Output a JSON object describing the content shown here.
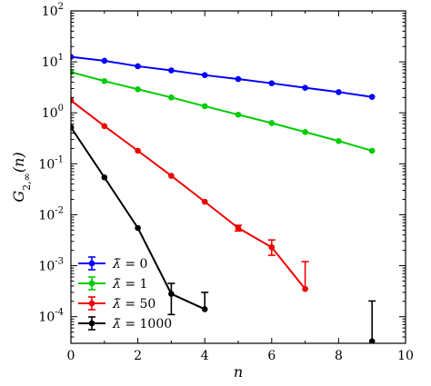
{
  "chart_data": {
    "type": "line",
    "xlabel": "n",
    "ylabel": "G_{2,∞}(n)",
    "ylabel_main": "G",
    "ylabel_sub": "2,∞",
    "ylabel_arg": "(n)",
    "xlim": [
      0,
      10
    ],
    "ylim": [
      3e-05,
      100
    ],
    "yscale": "log",
    "x_ticks": [
      0,
      2,
      4,
      6,
      8,
      10
    ],
    "x_tick_labels": [
      "0",
      "2",
      "4",
      "6",
      "8",
      "10"
    ],
    "y_tick_exponents": [
      -4,
      -3,
      -2,
      -1,
      0,
      1,
      2
    ],
    "y_tick_base": "10",
    "grid": false,
    "legend_position": "bottom-left",
    "series": [
      {
        "name": "λ̃ = 0",
        "label_lambda": "λ̃",
        "label_value": "= 0",
        "color": "#0000ff",
        "x": [
          0,
          1,
          2,
          3,
          4,
          5,
          6,
          7,
          8,
          9
        ],
        "y": [
          12.5,
          10.5,
          8.2,
          6.8,
          5.5,
          4.6,
          3.8,
          3.1,
          2.55,
          2.05
        ],
        "err_low": [
          0,
          0,
          0,
          0,
          0,
          0,
          0,
          0,
          0,
          0
        ],
        "err_high": [
          0,
          0,
          0,
          0,
          0,
          0,
          0,
          0,
          0,
          0
        ]
      },
      {
        "name": "λ̃ = 1",
        "label_lambda": "λ̃",
        "label_value": "= 1",
        "color": "#00cc00",
        "x": [
          0,
          1,
          2,
          3,
          4,
          5,
          6,
          7,
          8,
          9
        ],
        "y": [
          6.3,
          4.2,
          2.9,
          2.0,
          1.35,
          0.92,
          0.63,
          0.42,
          0.28,
          0.18
        ],
        "err_low": [
          0,
          0,
          0,
          0,
          0,
          0,
          0,
          0,
          0,
          0
        ],
        "err_high": [
          0,
          0,
          0,
          0,
          0,
          0,
          0,
          0,
          0,
          0
        ]
      },
      {
        "name": "λ̃ = 50",
        "label_lambda": "λ̃",
        "label_value": "= 50",
        "color": "#ee0000",
        "x": [
          0,
          1,
          2,
          3,
          4,
          5,
          6,
          7
        ],
        "y": [
          1.75,
          0.55,
          0.18,
          0.058,
          0.018,
          0.0055,
          0.0023,
          0.00035
        ],
        "err_low": [
          0,
          0,
          0,
          0,
          0,
          0.0007,
          0.0007,
          0
        ],
        "err_high": [
          0,
          0,
          0,
          0,
          0,
          0.0007,
          0.0009,
          0.00085
        ]
      },
      {
        "name": "λ̃ = 1000",
        "label_lambda": "λ̃",
        "label_value": "= 1000",
        "color": "#000000",
        "x": [
          0,
          1,
          2,
          3,
          4,
          9
        ],
        "y": [
          0.52,
          0.054,
          0.0055,
          0.00028,
          0.00014,
          3.3e-05
        ],
        "err_low": [
          0,
          0,
          0,
          0.00017,
          0,
          0
        ],
        "err_high": [
          0,
          0,
          0,
          0.00017,
          0.00016,
          0.00017
        ]
      }
    ]
  }
}
